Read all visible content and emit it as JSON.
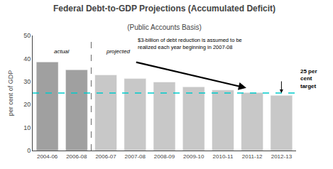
{
  "chart_data": {
    "type": "bar",
    "title": "Federal Debt-to-GDP Projections (Accumulated Deficit)",
    "subtitle": "(Public Accounts Basis)",
    "ylabel": "per cent of GDP",
    "categories": [
      "2004-06",
      "2006-08",
      "2006-07",
      "2007-08",
      "2008-09",
      "2009-10",
      "2010-11",
      "2011-12",
      "2012-13"
    ],
    "values": [
      38.5,
      35.1,
      32.9,
      31.3,
      29.8,
      27.7,
      26.3,
      25.2,
      24.0
    ],
    "colors": [
      "#a0a0a0",
      "#a0a0a0",
      "#c8c8c8",
      "#c8c8c8",
      "#c8c8c8",
      "#c8c8c8",
      "#c8c8c8",
      "#c8c8c8",
      "#c8c8c8"
    ],
    "period_labels": [
      "actual",
      "projected"
    ],
    "target": {
      "value": 25,
      "label": "25 per\ncent\ntarget",
      "color": "#00cccc"
    },
    "annotations": [
      "$3-billion of debt reduction is assumed to be\nrealized each year beginning in 2007-08"
    ],
    "ylim": [
      0,
      50
    ],
    "yticks": [
      0,
      10,
      20,
      30,
      40,
      50
    ],
    "grid": false
  }
}
